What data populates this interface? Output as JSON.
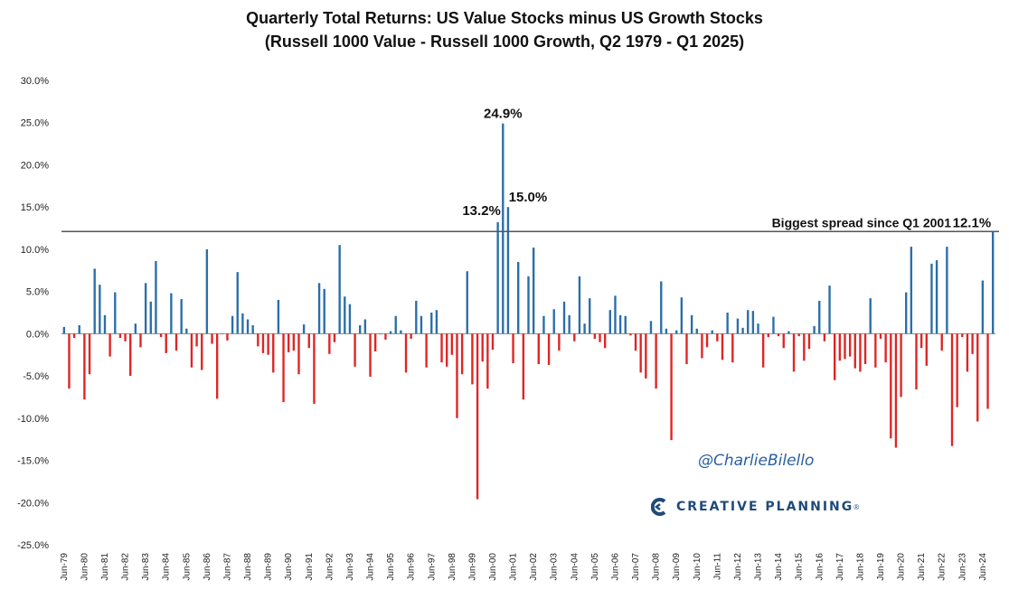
{
  "header": {
    "title": "Quarterly Total Returns: US Value Stocks minus US Growth Stocks",
    "subtitle": "(Russell 1000 Value - Russell 1000 Growth, Q2 1979 - Q1 2025)"
  },
  "branding": {
    "watermark": "@CharlieBilello",
    "logo_text": "CREATIVE PLANNING",
    "logo_mark": "®"
  },
  "colors": {
    "positive": "#2b6ea8",
    "negative": "#e02424",
    "reference_line": "#555555",
    "logo": "#1f4a7a"
  },
  "chart_data": {
    "type": "bar",
    "title": "Quarterly Total Returns: US Value Stocks minus US Growth Stocks",
    "subtitle": "(Russell 1000 Value - Russell 1000 Growth, Q2 1979 - Q1 2025)",
    "ylim": [
      -25,
      30
    ],
    "yticks": [
      "30.0%",
      "25.0%",
      "20.0%",
      "15.0%",
      "10.0%",
      "5.0%",
      "0.0%",
      "-5.0%",
      "-10.0%",
      "-15.0%",
      "-20.0%",
      "-25.0%"
    ],
    "xticks": [
      "Jun-79",
      "Jun-80",
      "Jun-81",
      "Jun-82",
      "Jun-83",
      "Jun-84",
      "Jun-85",
      "Jun-86",
      "Jun-87",
      "Jun-88",
      "Jun-89",
      "Jun-90",
      "Jun-91",
      "Jun-92",
      "Jun-93",
      "Jun-94",
      "Jun-95",
      "Jun-96",
      "Jun-97",
      "Jun-98",
      "Jun-99",
      "Jun-00",
      "Jun-01",
      "Jun-02",
      "Jun-03",
      "Jun-04",
      "Jun-05",
      "Jun-06",
      "Jun-07",
      "Jun-08",
      "Jun-09",
      "Jun-10",
      "Jun-11",
      "Jun-12",
      "Jun-13",
      "Jun-14",
      "Jun-15",
      "Jun-16",
      "Jun-17",
      "Jun-18",
      "Jun-19",
      "Jun-20",
      "Jun-21",
      "Jun-22",
      "Jun-23",
      "Jun-24"
    ],
    "values": [
      0.8,
      -6.5,
      -0.5,
      1.0,
      -7.8,
      -4.8,
      7.7,
      5.8,
      2.2,
      -2.7,
      4.9,
      -0.5,
      -0.9,
      -5.0,
      1.2,
      -1.6,
      6.0,
      3.8,
      8.6,
      -0.4,
      -2.3,
      4.8,
      -2.0,
      4.1,
      0.6,
      -4.0,
      -1.5,
      -4.3,
      10.0,
      -1.2,
      -7.7,
      0.0,
      -0.8,
      2.1,
      7.3,
      2.4,
      1.7,
      1.0,
      -1.5,
      -2.3,
      -2.5,
      -4.6,
      4.0,
      -8.1,
      -2.2,
      -2.0,
      -4.8,
      1.1,
      -1.7,
      -8.3,
      6.0,
      5.3,
      -2.4,
      -1.0,
      10.5,
      4.4,
      3.5,
      -3.9,
      1.0,
      1.7,
      -5.1,
      -2.1,
      0.0,
      -0.7,
      0.3,
      2.1,
      0.4,
      -4.6,
      -0.6,
      3.9,
      2.1,
      -4.0,
      2.5,
      2.8,
      -3.4,
      -3.9,
      -2.5,
      -10.0,
      -4.8,
      7.4,
      -6.0,
      -19.6,
      -3.3,
      -6.5,
      -1.9,
      13.2,
      24.9,
      15.0,
      -3.5,
      8.5,
      -7.8,
      6.8,
      10.2,
      -3.6,
      2.1,
      -3.7,
      2.9,
      -2.0,
      3.8,
      2.2,
      -0.9,
      6.8,
      1.2,
      4.2,
      -0.6,
      -1.0,
      -1.7,
      2.8,
      4.5,
      2.2,
      2.1,
      -0.2,
      -2.0,
      -4.6,
      -5.3,
      1.5,
      -6.5,
      6.2,
      0.6,
      -12.6,
      0.4,
      4.3,
      -3.6,
      2.2,
      0.6,
      -2.9,
      -1.6,
      0.4,
      -0.9,
      -3.1,
      2.5,
      -3.4,
      1.8,
      0.7,
      2.8,
      2.7,
      1.2,
      -4.0,
      -0.4,
      2.0,
      -0.3,
      -1.7,
      0.3,
      -4.5,
      -0.3,
      -3.2,
      -1.8,
      0.9,
      3.9,
      -0.9,
      5.7,
      -5.5,
      -3.2,
      -3.0,
      -2.7,
      -4.1,
      -4.5,
      -3.6,
      4.2,
      -4.0,
      -0.6,
      -3.4,
      -12.4,
      -13.5,
      -7.5,
      4.9,
      10.3,
      -6.6,
      -1.7,
      -3.8,
      8.3,
      8.7,
      -2.0,
      10.3,
      -13.3,
      -8.7,
      -0.4,
      -4.5,
      -2.4,
      -10.4,
      6.3,
      -8.9,
      12.1
    ],
    "data_labels": [
      {
        "index": 85,
        "text": "13.2%"
      },
      {
        "index": 86,
        "text": "24.9%"
      },
      {
        "index": 87,
        "text": "15.0%"
      },
      {
        "index": 182,
        "text": "12.1%"
      }
    ],
    "reference_line": {
      "value": 12.1,
      "label": "Biggest spread since Q1 2001"
    },
    "grid": false,
    "legend": "none"
  }
}
